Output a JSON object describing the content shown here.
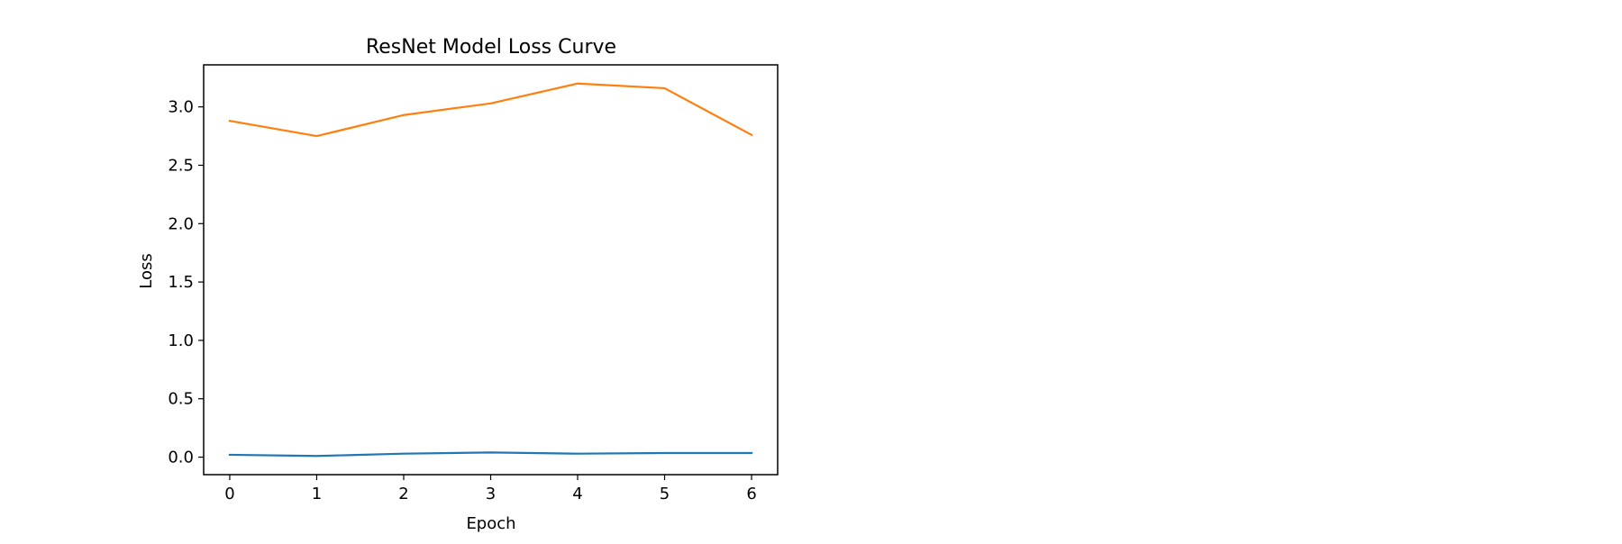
{
  "chart_data": {
    "type": "line",
    "title": "ResNet Model Loss Curve",
    "xlabel": "Epoch",
    "ylabel": "Loss",
    "x": [
      0,
      1,
      2,
      3,
      4,
      5,
      6
    ],
    "xticks": [
      "0",
      "1",
      "2",
      "3",
      "4",
      "5",
      "6"
    ],
    "yticks": [
      "0.0",
      "0.5",
      "1.0",
      "1.5",
      "2.0",
      "2.5",
      "3.0"
    ],
    "xlim": [
      -0.3,
      6.3
    ],
    "ylim": [
      -0.15,
      3.36
    ],
    "grid": false,
    "series": [
      {
        "values": [
          0.02,
          0.01,
          0.03,
          0.04,
          0.03,
          0.035,
          0.035
        ],
        "color": "#1f77b4"
      },
      {
        "values": [
          2.88,
          2.75,
          2.93,
          3.03,
          3.2,
          3.16,
          2.76
        ],
        "color": "#ff7f0e"
      }
    ]
  }
}
